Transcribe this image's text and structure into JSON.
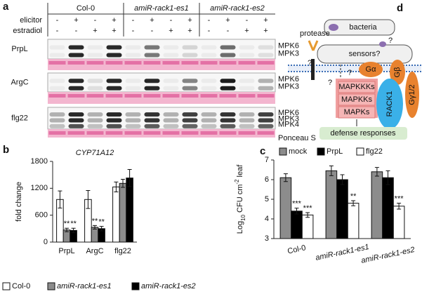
{
  "panels": [
    "a",
    "b",
    "c",
    "d"
  ],
  "blot": {
    "genotypes": [
      "Col-0",
      "amiR-rack1-es1",
      "amiR-rack1-es2"
    ],
    "treatments": [
      {
        "label": "elicitor",
        "signs": [
          "-",
          "+",
          "-",
          "+",
          "-",
          "+",
          "-",
          "+",
          "-",
          "+",
          "-",
          "+"
        ]
      },
      {
        "label": "estradiol",
        "signs": [
          "-",
          "-",
          "+",
          "+",
          "-",
          "-",
          "+",
          "+",
          "-",
          "-",
          "+",
          "+"
        ]
      }
    ],
    "rows": [
      {
        "label": "PrpL",
        "bands": [
          "MPK6",
          "MPK3"
        ]
      },
      {
        "label": "ArgC",
        "bands": [
          "MPK6",
          "MPK3"
        ]
      },
      {
        "label": "flg22",
        "bands": [
          "MPK6",
          "MPK3",
          "MPK4"
        ]
      }
    ],
    "stain": "Ponceau S"
  },
  "chart_data": [
    {
      "type": "bar",
      "title": "CYP71A12",
      "y_label": "fold change",
      "categories": [
        "PrpL",
        "ArgC",
        "flg22"
      ],
      "series": [
        {
          "name": "Col-0",
          "color": "#ffffff",
          "values": [
            950,
            950,
            1230
          ],
          "errors": [
            190,
            200,
            110
          ],
          "significance": [
            null,
            null,
            null
          ]
        },
        {
          "name": "amiR-rack1-es1",
          "color": "#8c8c8c",
          "values": [
            270,
            330,
            1310
          ],
          "errors": [
            40,
            40,
            90
          ],
          "significance": [
            "**",
            "**",
            null
          ]
        },
        {
          "name": "amiR-rack1-es2",
          "color": "#000000",
          "values": [
            260,
            300,
            1430
          ],
          "errors": [
            50,
            50,
            190
          ],
          "significance": [
            "**",
            "**",
            null
          ]
        }
      ],
      "ylim": [
        0,
        1800
      ],
      "yticks": [
        0,
        600,
        1200,
        1800
      ],
      "legend": "bottom"
    },
    {
      "type": "bar",
      "y_label": [
        "Log",
        "10",
        " CFU cm",
        "-2",
        " leaf"
      ],
      "categories": [
        "Col-0",
        "amiR-rack1-es1",
        "amiR-rack1-es2"
      ],
      "series": [
        {
          "name": "mock",
          "color": "#8c8c8c",
          "values": [
            6.1,
            6.45,
            6.4
          ],
          "errors": [
            0.2,
            0.25,
            0.22
          ],
          "significance": [
            null,
            null,
            null
          ]
        },
        {
          "name": "PrpL",
          "color": "#000000",
          "values": [
            4.4,
            6.0,
            6.1
          ],
          "errors": [
            0.15,
            0.25,
            0.35
          ],
          "significance": [
            "***",
            null,
            null
          ]
        },
        {
          "name": "flg22",
          "color": "#ffffff",
          "values": [
            4.2,
            4.8,
            4.65
          ],
          "errors": [
            0.12,
            0.13,
            0.15
          ],
          "significance": [
            "***",
            "**",
            "***"
          ]
        }
      ],
      "ylim": [
        3,
        7
      ],
      "yticks": [
        3,
        4,
        5,
        6,
        7
      ],
      "legend": "top"
    }
  ],
  "diagram": {
    "bacteria": "bacteria",
    "protease": "protease",
    "sensors": "sensors?",
    "questions": [
      "?",
      "?",
      "?",
      "?"
    ],
    "g_alpha": "Gα",
    "g_beta": "Gβ",
    "g_gamma": "Gγ1/2",
    "cascade": [
      "MAPKKKs",
      "MAPKKs",
      "MAPKs"
    ],
    "rack1": "RACK1",
    "output": "defense responses"
  }
}
